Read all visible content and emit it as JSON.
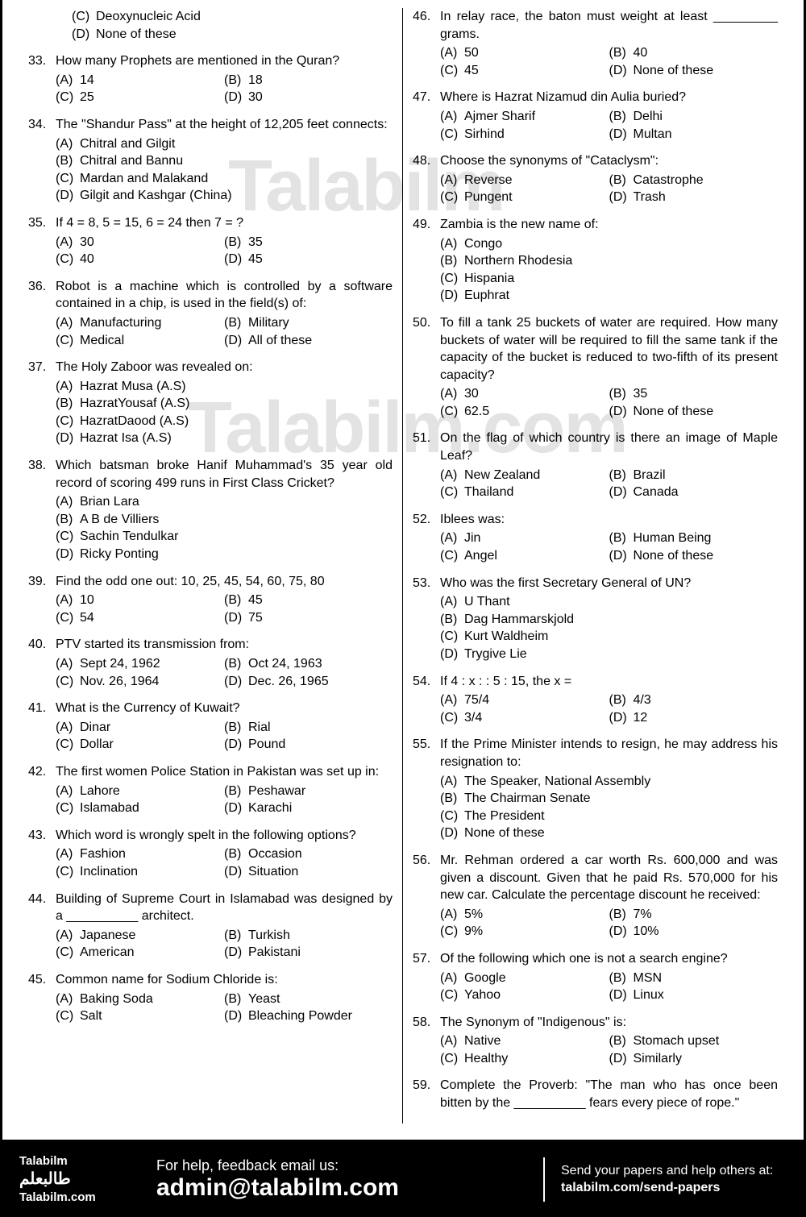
{
  "watermarks": {
    "wm1": "Talabilm",
    "wm2": "Talabilm.com"
  },
  "orphan_options": [
    {
      "letter": "(C)",
      "text": "Deoxynucleic Acid",
      "width": "full"
    },
    {
      "letter": "(D)",
      "text": "None of these",
      "width": "full"
    }
  ],
  "left_questions": [
    {
      "num": "33.",
      "text": "How many Prophets are mentioned in the Quran?",
      "options": [
        {
          "letter": "(A)",
          "text": "14",
          "width": "half"
        },
        {
          "letter": "(B)",
          "text": "18",
          "width": "half"
        },
        {
          "letter": "(C)",
          "text": "25",
          "width": "half"
        },
        {
          "letter": "(D)",
          "text": "30",
          "width": "half"
        }
      ]
    },
    {
      "num": "34.",
      "text": "The \"Shandur Pass\" at the height of 12,205 feet connects:",
      "options": [
        {
          "letter": "(A)",
          "text": "Chitral and Gilgit",
          "width": "full"
        },
        {
          "letter": "(B)",
          "text": "Chitral and Bannu",
          "width": "full"
        },
        {
          "letter": "(C)",
          "text": "Mardan and Malakand",
          "width": "full"
        },
        {
          "letter": "(D)",
          "text": "Gilgit and Kashgar (China)",
          "width": "full"
        }
      ]
    },
    {
      "num": "35.",
      "text": "If 4 = 8, 5 = 15, 6 = 24 then 7 = ?",
      "options": [
        {
          "letter": "(A)",
          "text": "30",
          "width": "half"
        },
        {
          "letter": "(B)",
          "text": "35",
          "width": "half"
        },
        {
          "letter": "(C)",
          "text": "40",
          "width": "half"
        },
        {
          "letter": "(D)",
          "text": "45",
          "width": "half"
        }
      ]
    },
    {
      "num": "36.",
      "text": "Robot is a machine which is controlled by a software contained in a chip, is used in the field(s) of:",
      "options": [
        {
          "letter": "(A)",
          "text": "Manufacturing",
          "width": "half"
        },
        {
          "letter": "(B)",
          "text": "Military",
          "width": "half"
        },
        {
          "letter": "(C)",
          "text": "Medical",
          "width": "half"
        },
        {
          "letter": "(D)",
          "text": "All of these",
          "width": "half"
        }
      ]
    },
    {
      "num": "37.",
      "text": "The Holy Zaboor was revealed on:",
      "options": [
        {
          "letter": "(A)",
          "text": "Hazrat Musa (A.S)",
          "width": "full"
        },
        {
          "letter": "(B)",
          "text": "HazratYousaf (A.S)",
          "width": "full"
        },
        {
          "letter": "(C)",
          "text": "HazratDaood (A.S)",
          "width": "full"
        },
        {
          "letter": "(D)",
          "text": "Hazrat Isa (A.S)",
          "width": "full"
        }
      ]
    },
    {
      "num": "38.",
      "text": "Which batsman broke Hanif Muhammad's 35 year old record of scoring 499 runs in First Class Cricket?",
      "options": [
        {
          "letter": "(A)",
          "text": "Brian Lara",
          "width": "full"
        },
        {
          "letter": "(B)",
          "text": "A B de Villiers",
          "width": "full"
        },
        {
          "letter": "(C)",
          "text": "Sachin Tendulkar",
          "width": "full"
        },
        {
          "letter": "(D)",
          "text": "Ricky Ponting",
          "width": "full"
        }
      ]
    },
    {
      "num": "39.",
      "text": "Find the odd one out: 10, 25, 45, 54, 60, 75, 80",
      "options": [
        {
          "letter": "(A)",
          "text": "10",
          "width": "half"
        },
        {
          "letter": "(B)",
          "text": "45",
          "width": "half"
        },
        {
          "letter": "(C)",
          "text": "54",
          "width": "half"
        },
        {
          "letter": "(D)",
          "text": "75",
          "width": "half"
        }
      ]
    },
    {
      "num": "40.",
      "text": "PTV started its transmission from:",
      "options": [
        {
          "letter": "(A)",
          "text": "Sept 24, 1962",
          "width": "half"
        },
        {
          "letter": "(B)",
          "text": "Oct 24, 1963",
          "width": "half"
        },
        {
          "letter": "(C)",
          "text": "Nov. 26, 1964",
          "width": "half"
        },
        {
          "letter": "(D)",
          "text": "Dec. 26, 1965",
          "width": "half"
        }
      ]
    },
    {
      "num": "41.",
      "text": "What is the Currency of Kuwait?",
      "options": [
        {
          "letter": "(A)",
          "text": "Dinar",
          "width": "half"
        },
        {
          "letter": "(B)",
          "text": "Rial",
          "width": "half"
        },
        {
          "letter": "(C)",
          "text": "Dollar",
          "width": "half"
        },
        {
          "letter": "(D)",
          "text": "Pound",
          "width": "half"
        }
      ]
    },
    {
      "num": "42.",
      "text": "The first women Police Station in Pakistan was set up in:",
      "options": [
        {
          "letter": "(A)",
          "text": "Lahore",
          "width": "half"
        },
        {
          "letter": "(B)",
          "text": "Peshawar",
          "width": "half"
        },
        {
          "letter": "(C)",
          "text": "Islamabad",
          "width": "half"
        },
        {
          "letter": "(D)",
          "text": "Karachi",
          "width": "half"
        }
      ]
    },
    {
      "num": "43.",
      "text": "Which word is wrongly spelt in the following options?",
      "options": [
        {
          "letter": "(A)",
          "text": "Fashion",
          "width": "half"
        },
        {
          "letter": "(B)",
          "text": "Occasion",
          "width": "half"
        },
        {
          "letter": "(C)",
          "text": "Inclination",
          "width": "half"
        },
        {
          "letter": "(D)",
          "text": "Situation",
          "width": "half"
        }
      ]
    },
    {
      "num": "44.",
      "text": "Building of Supreme Court in Islamabad was designed by a __________ architect.",
      "options": [
        {
          "letter": "(A)",
          "text": "Japanese",
          "width": "half"
        },
        {
          "letter": "(B)",
          "text": "Turkish",
          "width": "half"
        },
        {
          "letter": "(C)",
          "text": "American",
          "width": "half"
        },
        {
          "letter": "(D)",
          "text": "Pakistani",
          "width": "half"
        }
      ]
    },
    {
      "num": "45.",
      "text": "Common name for Sodium Chloride is:",
      "options": [
        {
          "letter": "(A)",
          "text": "Baking Soda",
          "width": "half"
        },
        {
          "letter": "(B)",
          "text": "Yeast",
          "width": "half"
        },
        {
          "letter": "(C)",
          "text": "Salt",
          "width": "half"
        },
        {
          "letter": "(D)",
          "text": "Bleaching Powder",
          "width": "half"
        }
      ]
    }
  ],
  "right_questions": [
    {
      "num": "46.",
      "text": "In relay race, the baton must weight at least _________ grams.",
      "options": [
        {
          "letter": "(A)",
          "text": "50",
          "width": "half"
        },
        {
          "letter": "(B)",
          "text": "40",
          "width": "half"
        },
        {
          "letter": "(C)",
          "text": "45",
          "width": "half"
        },
        {
          "letter": "(D)",
          "text": "None of these",
          "width": "half"
        }
      ]
    },
    {
      "num": "47.",
      "text": "Where is Hazrat Nizamud din Aulia buried?",
      "options": [
        {
          "letter": "(A)",
          "text": "Ajmer Sharif",
          "width": "half"
        },
        {
          "letter": "(B)",
          "text": "Delhi",
          "width": "half"
        },
        {
          "letter": "(C)",
          "text": "Sirhind",
          "width": "half"
        },
        {
          "letter": "(D)",
          "text": "Multan",
          "width": "half"
        }
      ]
    },
    {
      "num": "48.",
      "text": "Choose the synonyms of \"Cataclysm\":",
      "options": [
        {
          "letter": "(A)",
          "text": "Reverse",
          "width": "half"
        },
        {
          "letter": "(B)",
          "text": "Catastrophe",
          "width": "half"
        },
        {
          "letter": "(C)",
          "text": "Pungent",
          "width": "half"
        },
        {
          "letter": "(D)",
          "text": "Trash",
          "width": "half"
        }
      ]
    },
    {
      "num": "49.",
      "text": "Zambia is the new name of:",
      "options": [
        {
          "letter": "(A)",
          "text": "Congo",
          "width": "full"
        },
        {
          "letter": "(B)",
          "text": "Northern Rhodesia",
          "width": "full"
        },
        {
          "letter": "(C)",
          "text": "Hispania",
          "width": "full"
        },
        {
          "letter": "(D)",
          "text": "Euphrat",
          "width": "full"
        }
      ]
    },
    {
      "num": "50.",
      "text": "To fill a tank 25 buckets of water are required. How many buckets of water will be required to fill the same tank if the capacity of the bucket is reduced to two-fifth of its present capacity?",
      "options": [
        {
          "letter": "(A)",
          "text": "30",
          "width": "half"
        },
        {
          "letter": "(B)",
          "text": "35",
          "width": "half"
        },
        {
          "letter": "(C)",
          "text": "62.5",
          "width": "half"
        },
        {
          "letter": "(D)",
          "text": "None of these",
          "width": "half"
        }
      ]
    },
    {
      "num": "51.",
      "text": "On the flag of which country is there an image of Maple Leaf?",
      "options": [
        {
          "letter": "(A)",
          "text": "New Zealand",
          "width": "half"
        },
        {
          "letter": "(B)",
          "text": "Brazil",
          "width": "half"
        },
        {
          "letter": "(C)",
          "text": "Thailand",
          "width": "half"
        },
        {
          "letter": "(D)",
          "text": "Canada",
          "width": "half"
        }
      ]
    },
    {
      "num": "52.",
      "text": "Iblees was:",
      "options": [
        {
          "letter": "(A)",
          "text": "Jin",
          "width": "half"
        },
        {
          "letter": "(B)",
          "text": "Human Being",
          "width": "half"
        },
        {
          "letter": "(C)",
          "text": "Angel",
          "width": "half"
        },
        {
          "letter": "(D)",
          "text": "None of these",
          "width": "half"
        }
      ]
    },
    {
      "num": "53.",
      "text": "Who was the first Secretary General of UN?",
      "options": [
        {
          "letter": "(A)",
          "text": "U Thant",
          "width": "full"
        },
        {
          "letter": "(B)",
          "text": "Dag Hammarskjold",
          "width": "full"
        },
        {
          "letter": "(C)",
          "text": "Kurt Waldheim",
          "width": "full"
        },
        {
          "letter": "(D)",
          "text": "Trygive Lie",
          "width": "full"
        }
      ]
    },
    {
      "num": "54.",
      "text": "If 4 : x : : 5 : 15, the x =",
      "options": [
        {
          "letter": "(A)",
          "text": "75/4",
          "width": "half"
        },
        {
          "letter": "(B)",
          "text": "4/3",
          "width": "half"
        },
        {
          "letter": "(C)",
          "text": "3/4",
          "width": "half"
        },
        {
          "letter": "(D)",
          "text": "12",
          "width": "half"
        }
      ]
    },
    {
      "num": "55.",
      "text": "If the Prime Minister intends to resign, he may address his resignation to:",
      "options": [
        {
          "letter": "(A)",
          "text": "The Speaker, National Assembly",
          "width": "full"
        },
        {
          "letter": "(B)",
          "text": "The Chairman Senate",
          "width": "full"
        },
        {
          "letter": "(C)",
          "text": "The President",
          "width": "full"
        },
        {
          "letter": "(D)",
          "text": "None of these",
          "width": "full"
        }
      ]
    },
    {
      "num": "56.",
      "text": "Mr. Rehman ordered a car worth Rs. 600,000 and was given a discount. Given that he paid Rs. 570,000 for his new car. Calculate the percentage discount he received:",
      "options": [
        {
          "letter": "(A)",
          "text": "5%",
          "width": "half"
        },
        {
          "letter": "(B)",
          "text": "7%",
          "width": "half"
        },
        {
          "letter": "(C)",
          "text": "9%",
          "width": "half"
        },
        {
          "letter": "(D)",
          "text": "10%",
          "width": "half"
        }
      ]
    },
    {
      "num": "57.",
      "text": "Of the following which one is not a search engine?",
      "options": [
        {
          "letter": "(A)",
          "text": "Google",
          "width": "half"
        },
        {
          "letter": "(B)",
          "text": "MSN",
          "width": "half"
        },
        {
          "letter": "(C)",
          "text": "Yahoo",
          "width": "half"
        },
        {
          "letter": "(D)",
          "text": "Linux",
          "width": "half"
        }
      ]
    },
    {
      "num": "58.",
      "text": "The Synonym of \"Indigenous\" is:",
      "options": [
        {
          "letter": "(A)",
          "text": "Native",
          "width": "half"
        },
        {
          "letter": "(B)",
          "text": "Stomach upset",
          "width": "half"
        },
        {
          "letter": "(C)",
          "text": "Healthy",
          "width": "half"
        },
        {
          "letter": "(D)",
          "text": "Similarly",
          "width": "half"
        }
      ]
    },
    {
      "num": "59.",
      "text": "Complete the Proverb: \"The man who has once been bitten by the __________ fears every piece of rope.\"",
      "options": []
    }
  ],
  "footer": {
    "brand": "Talabilm",
    "arabic": "طالبعلم",
    "site": "Talabilm.com",
    "help_small": "For help, feedback email us:",
    "help_big": "admin@talabilm.com",
    "send_text": "Send your papers and help others at:",
    "send_link": "talabilm.com/send-papers"
  }
}
